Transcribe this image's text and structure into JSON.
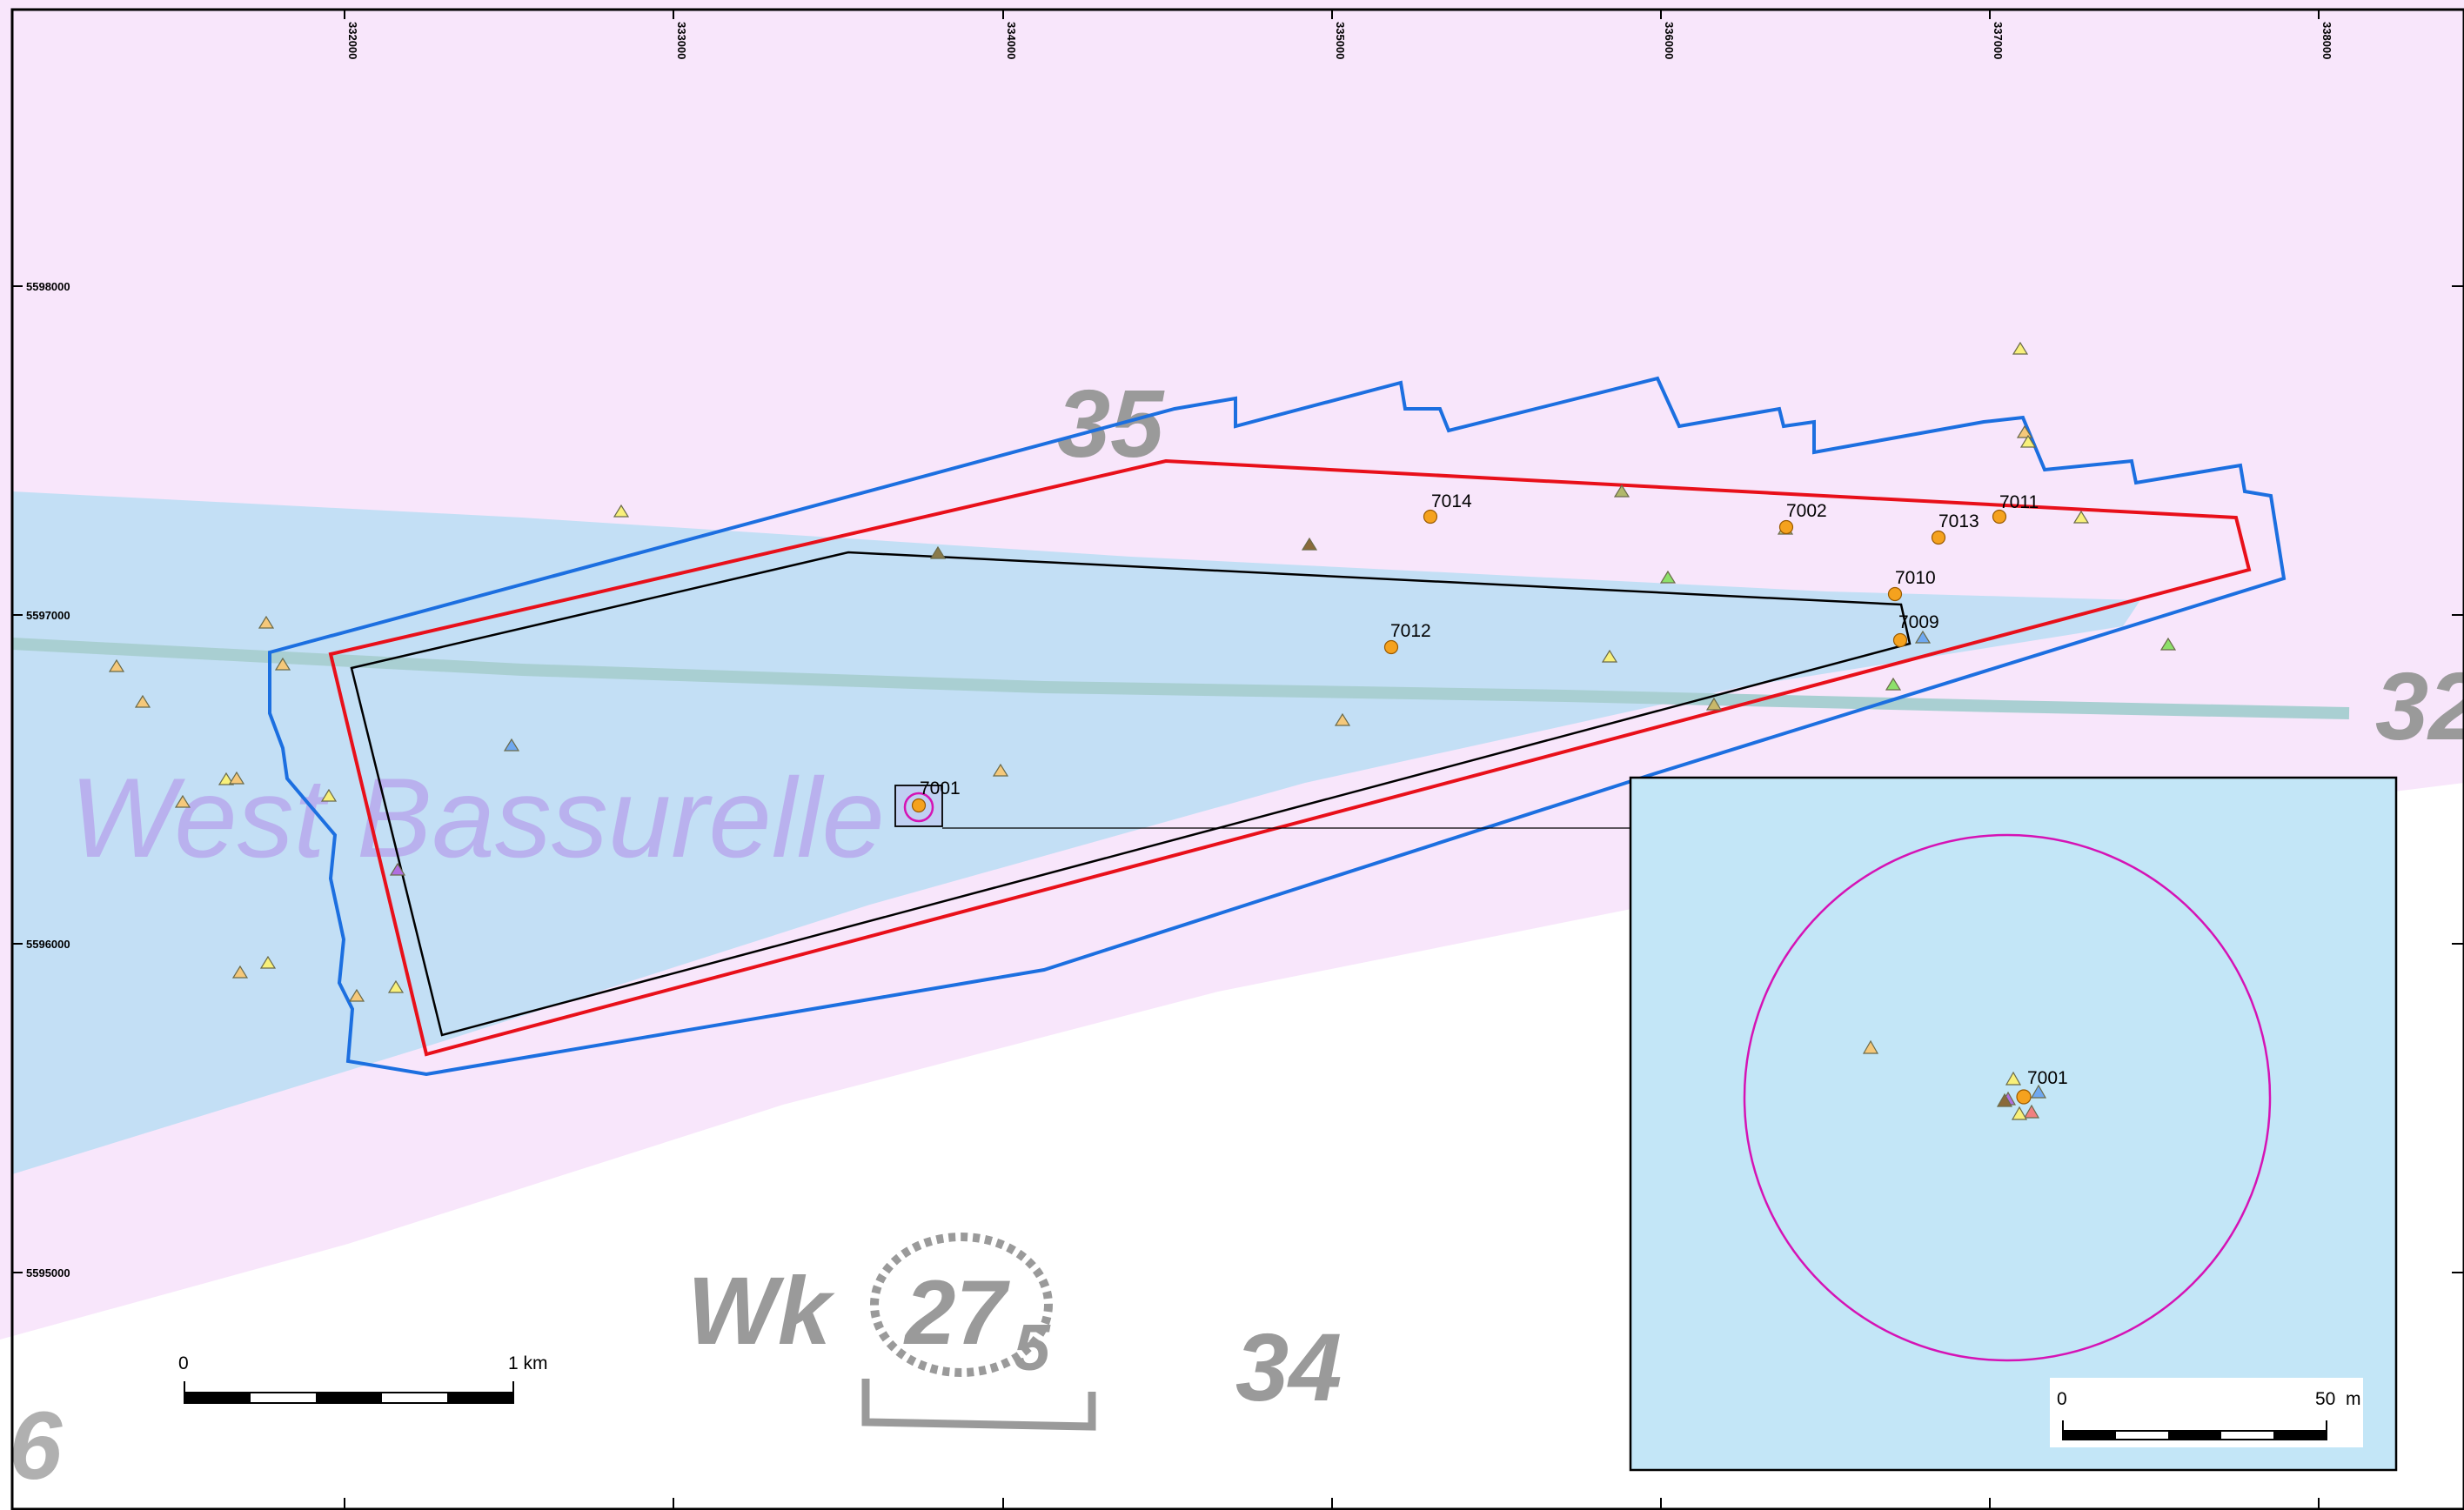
{
  "map": {
    "x_ticks": [
      "332000",
      "333000",
      "334000",
      "335000",
      "336000",
      "337000",
      "338000"
    ],
    "y_ticks": [
      "5598000",
      "5597000",
      "5596000",
      "5595000"
    ],
    "chart_labels": {
      "area_name": "West Bassurelle",
      "depth_35": "35",
      "depth_34": "34",
      "depth_32": "32",
      "wreck": "Wk",
      "wreck_depth": "27",
      "wreck_depth_sub": "5",
      "depth_6": "6"
    },
    "points": [
      {
        "id": "7001",
        "label": "7001"
      },
      {
        "id": "7002",
        "label": "7002"
      },
      {
        "id": "7009",
        "label": "7009"
      },
      {
        "id": "7010",
        "label": "7010"
      },
      {
        "id": "7011",
        "label": "7011"
      },
      {
        "id": "7012",
        "label": "7012"
      },
      {
        "id": "7013",
        "label": "7013"
      },
      {
        "id": "7014",
        "label": "7014"
      }
    ],
    "scale_bar": {
      "start": "0",
      "end": "1 km"
    },
    "colors": {
      "sea": "#c3dff5",
      "shallow": "#f8e6fb",
      "outer_boundary": "#1c6fe0",
      "red_boundary": "#e8101a",
      "inner_boundary": "#000000",
      "point_fill": "#f5a21e",
      "circle": "#d513b5"
    }
  },
  "inset": {
    "point_label": "7001",
    "scale_bar": {
      "start": "0",
      "end": "50  m"
    }
  }
}
